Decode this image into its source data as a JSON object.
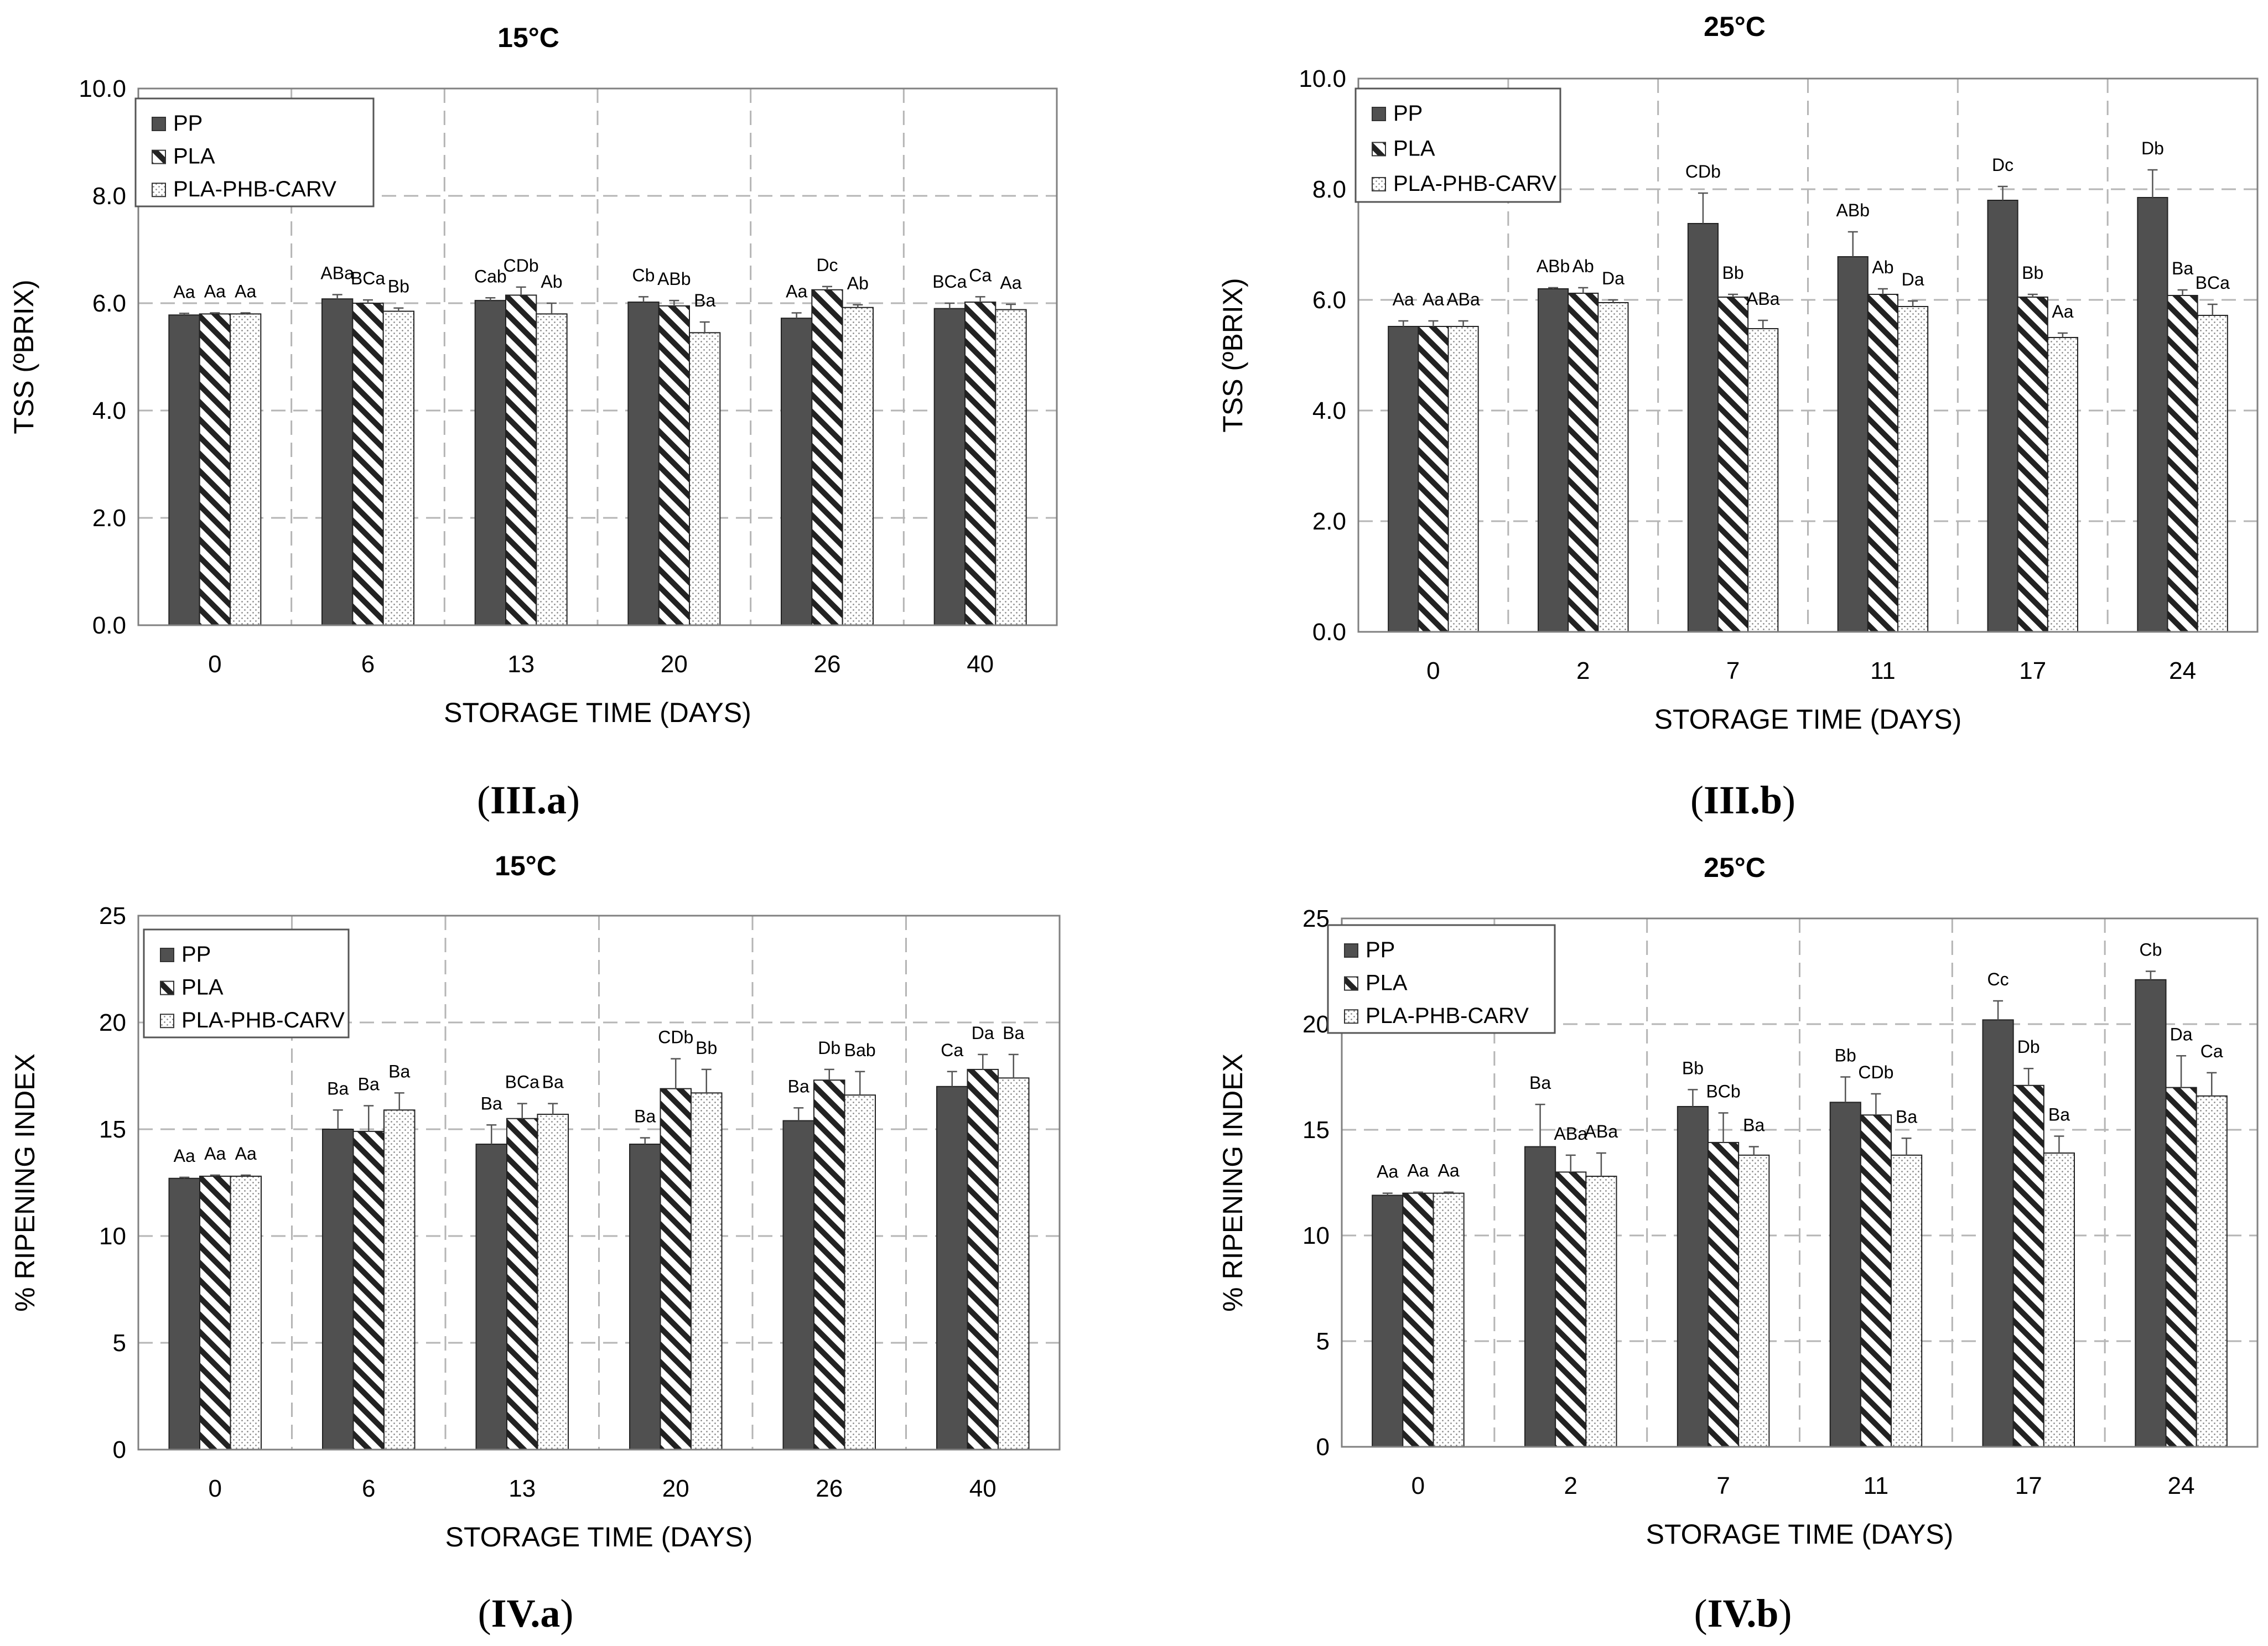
{
  "colors": {
    "pp": "#505050",
    "pla": "#222222",
    "carv": "#8a8a8a",
    "grid": "#b5b5b5",
    "frame": "#808080"
  },
  "legend_labels": [
    "PP",
    "PLA",
    "PLA-PHB-CARV"
  ],
  "chart_data": [
    {
      "type": "bar",
      "panel": "III.a",
      "caption_open": "(",
      "caption_label": "III.a",
      "caption_close": ")",
      "title": "15°C",
      "xlabel": "STORAGE TIME (DAYS)",
      "ylabel": "TSS (ºBRIX)",
      "ylim": [
        0,
        10
      ],
      "yticks": [
        "0.0",
        "2.0",
        "4.0",
        "6.0",
        "8.0",
        "10.0"
      ],
      "categories": [
        "0",
        "6",
        "13",
        "20",
        "26",
        "40"
      ],
      "series": [
        {
          "name": "PP",
          "values": [
            5.78,
            6.08,
            6.05,
            6.02,
            5.72,
            5.9
          ],
          "errors": [
            0.03,
            0.08,
            0.05,
            0.1,
            0.1,
            0.1
          ],
          "labels": [
            "Aa",
            "ABa",
            "Cab",
            "Cb",
            "Aa",
            "BCa"
          ]
        },
        {
          "name": "PLA",
          "values": [
            5.8,
            6.0,
            6.15,
            5.95,
            6.25,
            6.02
          ],
          "errors": [
            0.02,
            0.06,
            0.15,
            0.1,
            0.06,
            0.1
          ],
          "labels": [
            "Aa",
            "BCa",
            "CDb",
            "ABb",
            "Dc",
            "Ca"
          ]
        },
        {
          "name": "PLA-PHB-CARV",
          "values": [
            5.8,
            5.85,
            5.8,
            5.45,
            5.92,
            5.88
          ],
          "errors": [
            0.02,
            0.06,
            0.2,
            0.2,
            0.05,
            0.1
          ],
          "labels": [
            "Aa",
            "Bb",
            "Ab",
            "Ba",
            "Ab",
            "Aa"
          ]
        }
      ]
    },
    {
      "type": "bar",
      "panel": "III.b",
      "caption_open": "(",
      "caption_label": "III.b",
      "caption_close": ")",
      "title": "25°C",
      "xlabel": "STORAGE TIME (DAYS)",
      "ylabel": "TSS (ºBRIX)",
      "ylim": [
        0,
        10
      ],
      "yticks": [
        "0.0",
        "2.0",
        "4.0",
        "6.0",
        "8.0",
        "10.0"
      ],
      "categories": [
        "0",
        "2",
        "7",
        "11",
        "17",
        "24"
      ],
      "series": [
        {
          "name": "PP",
          "values": [
            5.52,
            6.2,
            7.38,
            6.78,
            7.8,
            7.85
          ],
          "errors": [
            0.1,
            0.02,
            0.55,
            0.45,
            0.25,
            0.5
          ],
          "labels": [
            "Aa",
            "ABb",
            "CDb",
            "ABb",
            "Dc",
            "Db"
          ]
        },
        {
          "name": "PLA",
          "values": [
            5.52,
            6.12,
            6.05,
            6.1,
            6.05,
            6.08
          ],
          "errors": [
            0.1,
            0.1,
            0.05,
            0.1,
            0.05,
            0.1
          ],
          "labels": [
            "Aa",
            "Ab",
            "Bb",
            "Ab",
            "Bb",
            "Ba"
          ]
        },
        {
          "name": "PLA-PHB-CARV",
          "values": [
            5.52,
            5.95,
            5.48,
            5.88,
            5.32,
            5.72
          ],
          "errors": [
            0.1,
            0.05,
            0.15,
            0.1,
            0.08,
            0.2
          ],
          "labels": [
            "ABa",
            "Da",
            "ABa",
            "Da",
            "Aa",
            "BCa"
          ]
        }
      ]
    },
    {
      "type": "bar",
      "panel": "IV.a",
      "caption_open": "(",
      "caption_label": "IV.a",
      "caption_close": ")",
      "title": "15°C",
      "xlabel": "STORAGE TIME (DAYS)",
      "ylabel": "% RIPENING INDEX",
      "ylim": [
        0,
        25
      ],
      "yticks": [
        "0",
        "5",
        "10",
        "15",
        "20",
        "25"
      ],
      "categories": [
        "0",
        "6",
        "13",
        "20",
        "26",
        "40"
      ],
      "series": [
        {
          "name": "PP",
          "values": [
            12.7,
            15.0,
            14.3,
            14.3,
            15.4,
            17.0
          ],
          "errors": [
            0.05,
            0.9,
            0.9,
            0.3,
            0.6,
            0.7
          ],
          "labels": [
            "Aa",
            "Ba",
            "Ba",
            "Ba",
            "Ba",
            "Ca"
          ]
        },
        {
          "name": "PLA",
          "values": [
            12.8,
            14.9,
            15.5,
            16.9,
            17.3,
            17.8
          ],
          "errors": [
            0.05,
            1.2,
            0.7,
            1.4,
            0.5,
            0.7
          ],
          "labels": [
            "Aa",
            "Ba",
            "BCa",
            "CDb",
            "Db",
            "Da"
          ]
        },
        {
          "name": "PLA-PHB-CARV",
          "values": [
            12.8,
            15.9,
            15.7,
            16.7,
            16.6,
            17.4
          ],
          "errors": [
            0.05,
            0.8,
            0.5,
            1.1,
            1.1,
            1.1
          ],
          "labels": [
            "Aa",
            "Ba",
            "Ba",
            "Bb",
            "Bab",
            "Ba"
          ]
        }
      ]
    },
    {
      "type": "bar",
      "panel": "IV.b",
      "caption_open": "(",
      "caption_label": "IV.b",
      "caption_close": ")",
      "title": "25°C",
      "xlabel": "STORAGE TIME (DAYS)",
      "ylabel": "% RIPENING INDEX",
      "ylim": [
        0,
        25
      ],
      "yticks": [
        "0",
        "5",
        "10",
        "15",
        "20",
        "25"
      ],
      "categories": [
        "0",
        "2",
        "7",
        "11",
        "17",
        "24"
      ],
      "series": [
        {
          "name": "PP",
          "values": [
            11.9,
            14.2,
            16.1,
            16.3,
            20.2,
            22.1
          ],
          "errors": [
            0.1,
            2.0,
            0.8,
            1.2,
            0.9,
            0.4
          ],
          "labels": [
            "Aa",
            "Ba",
            "Bb",
            "Bb",
            "Cc",
            "Cb"
          ]
        },
        {
          "name": "PLA",
          "values": [
            12.0,
            13.0,
            14.4,
            15.7,
            17.1,
            17.0
          ],
          "errors": [
            0.05,
            0.8,
            1.4,
            1.0,
            0.8,
            1.5
          ],
          "labels": [
            "Aa",
            "ABa",
            "BCb",
            "CDb",
            "Db",
            "Da"
          ]
        },
        {
          "name": "PLA-PHB-CARV",
          "values": [
            12.0,
            12.8,
            13.8,
            13.8,
            13.9,
            16.6
          ],
          "errors": [
            0.05,
            1.1,
            0.4,
            0.8,
            0.8,
            1.1
          ],
          "labels": [
            "Aa",
            "ABa",
            "Ba",
            "Ba",
            "Ba",
            "Ca"
          ]
        }
      ]
    }
  ]
}
